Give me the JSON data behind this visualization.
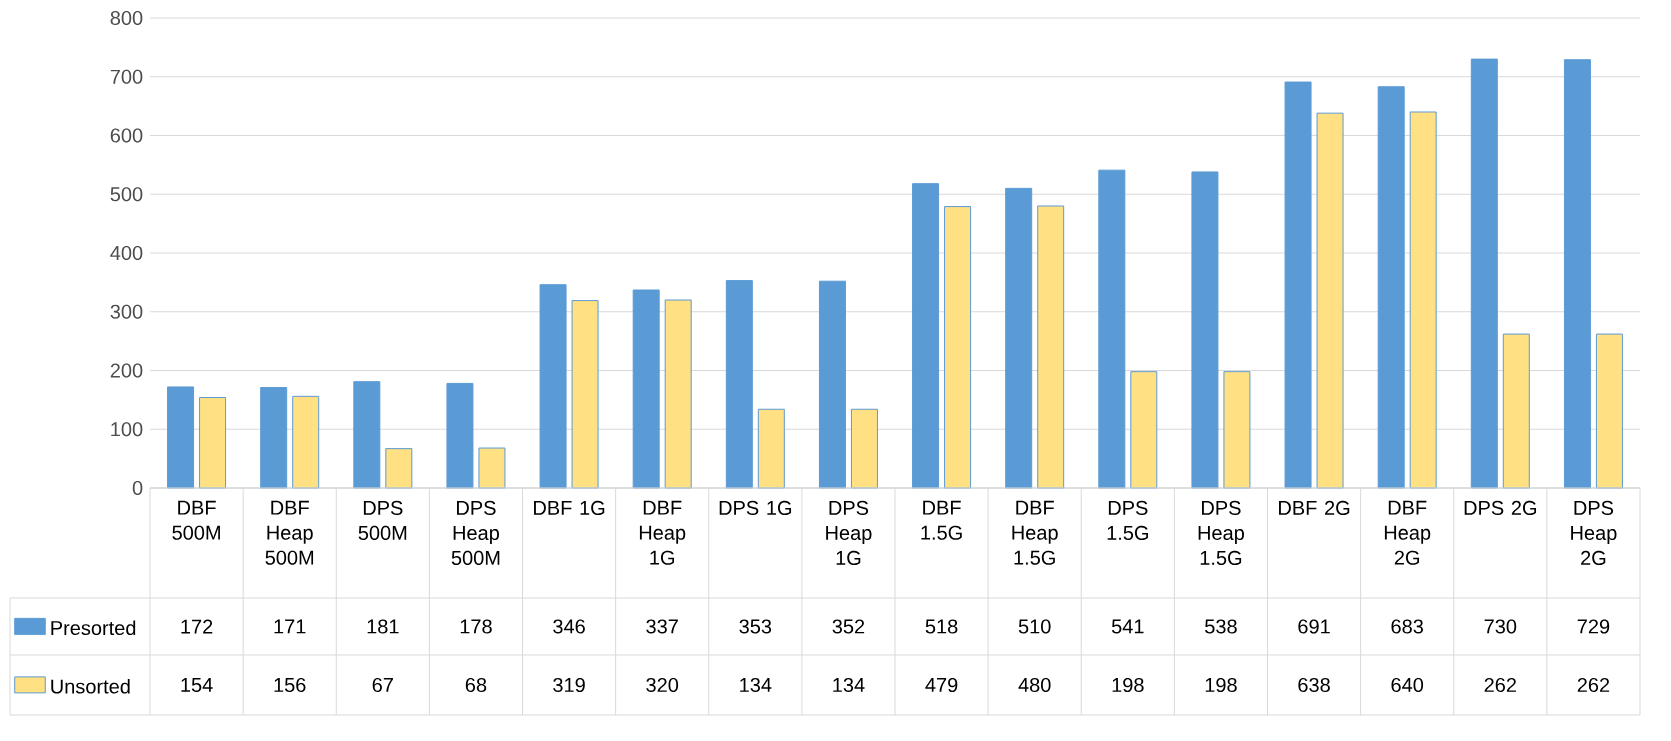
{
  "chart_data": {
    "type": "bar",
    "categories": [
      "DBF 500M",
      "DBF Heap 500M",
      "DPS 500M",
      "DPS Heap 500M",
      "DBF 1G",
      "DBF Heap 1G",
      "DPS 1G",
      "DPS Heap 1G",
      "DBF 1.5G",
      "DBF Heap 1.5G",
      "DPS 1.5G",
      "DPS Heap 1.5G",
      "DBF 2G",
      "DBF Heap 2G",
      "DPS 2G",
      "DPS Heap 2G"
    ],
    "series": [
      {
        "name": "Presorted",
        "color": "#5b9bd5",
        "values": [
          172,
          171,
          181,
          178,
          346,
          337,
          353,
          352,
          518,
          510,
          541,
          538,
          691,
          683,
          730,
          729
        ]
      },
      {
        "name": "Unsorted",
        "color": "#ffe082",
        "values": [
          154,
          156,
          67,
          68,
          319,
          320,
          134,
          134,
          479,
          480,
          198,
          198,
          638,
          640,
          262,
          262
        ]
      }
    ],
    "ylim": [
      0,
      800
    ],
    "yticks": [
      0,
      100,
      200,
      300,
      400,
      500,
      600,
      700,
      800
    ],
    "grid": "y",
    "legend": "bottom",
    "data_labels": true
  }
}
